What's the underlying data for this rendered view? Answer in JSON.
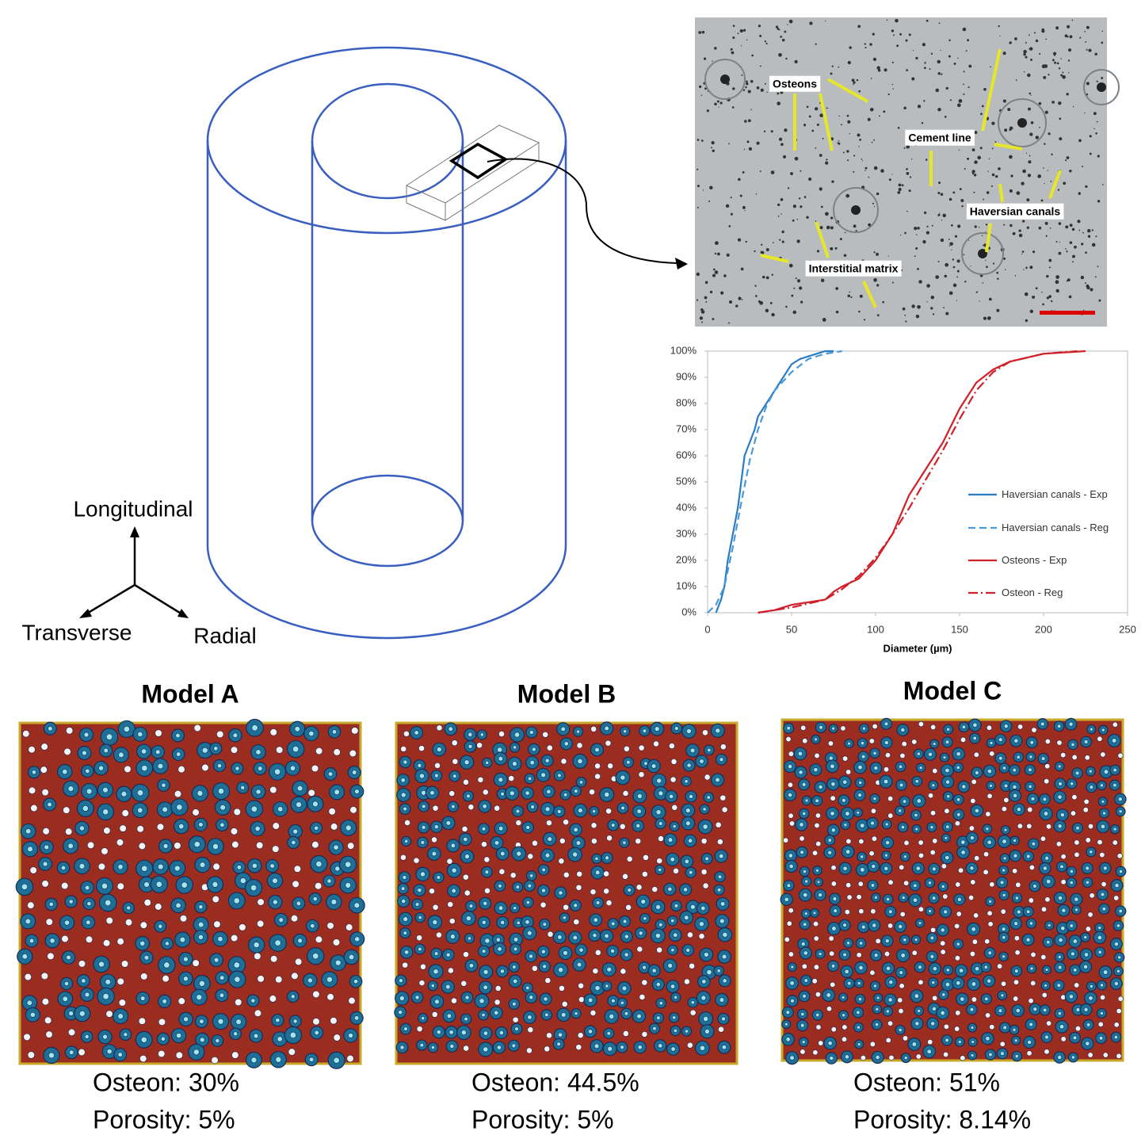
{
  "diagram": {
    "axes": {
      "up": "Longitudinal",
      "left": "Transverse",
      "right": "Radial"
    }
  },
  "micrograph": {
    "labels": [
      "Osteons",
      "Cement line",
      "Haversian canals",
      "Interstitial matrix"
    ]
  },
  "chart_data": {
    "type": "line",
    "x_label": "Diameter (µm)",
    "xlim": [
      0,
      250
    ],
    "xticks": [
      0,
      50,
      100,
      150,
      200,
      250
    ],
    "ylim": [
      0,
      100
    ],
    "yticks": [
      {
        "value": 0,
        "label": "0%"
      },
      {
        "value": 10,
        "label": "10%"
      },
      {
        "value": 20,
        "label": "20%"
      },
      {
        "value": 30,
        "label": "30%"
      },
      {
        "value": 40,
        "label": "40%"
      },
      {
        "value": 50,
        "label": "50%"
      },
      {
        "value": 60,
        "label": "60%"
      },
      {
        "value": 70,
        "label": "70%"
      },
      {
        "value": 80,
        "label": "80%"
      },
      {
        "value": 90,
        "label": "90%"
      },
      {
        "value": 100,
        "label": "100%"
      }
    ],
    "series": [
      {
        "name": "Haversian canals - Exp",
        "color": "#2b7cc4",
        "dash": "solid",
        "x": [
          5,
          8,
          10,
          12,
          15,
          18,
          20,
          22,
          25,
          28,
          30,
          35,
          40,
          45,
          50,
          55,
          60,
          70,
          75
        ],
        "values": [
          0,
          5,
          10,
          20,
          30,
          40,
          50,
          60,
          65,
          70,
          75,
          80,
          85,
          90,
          95,
          97,
          98,
          100,
          100
        ]
      },
      {
        "name": "Haversian canals - Reg",
        "color": "#4a9ad8",
        "dash": "dashed",
        "x": [
          0,
          5,
          10,
          15,
          20,
          25,
          30,
          35,
          40,
          50,
          60,
          70,
          80
        ],
        "values": [
          0,
          3,
          10,
          25,
          42,
          58,
          70,
          79,
          85,
          92,
          97,
          99,
          100
        ]
      },
      {
        "name": "Osteons - Exp",
        "color": "#d0202a",
        "dash": "solid",
        "x": [
          30,
          40,
          50,
          60,
          70,
          75,
          80,
          90,
          100,
          110,
          120,
          130,
          140,
          150,
          160,
          170,
          180,
          200,
          225
        ],
        "values": [
          0,
          1,
          3,
          4,
          5,
          8,
          10,
          13,
          20,
          30,
          45,
          55,
          65,
          78,
          88,
          93,
          96,
          99,
          100
        ]
      },
      {
        "name": "Osteon - Reg",
        "color": "#d0202a",
        "dash": "dashdot",
        "x": [
          30,
          50,
          70,
          80,
          90,
          100,
          110,
          120,
          130,
          140,
          150,
          160,
          170,
          180,
          200,
          220
        ],
        "values": [
          0,
          2,
          5,
          9,
          14,
          21,
          30,
          40,
          51,
          62,
          74,
          85,
          92,
          96,
          99,
          100
        ]
      }
    ]
  },
  "models": [
    {
      "title": "Model A",
      "osteon": "Osteon: 30%",
      "porosity": "Porosity: 5%"
    },
    {
      "title": "Model B",
      "osteon": "Osteon: 44.5%",
      "porosity": "Porosity: 5%"
    },
    {
      "title": "Model C",
      "osteon": "Osteon: 51%",
      "porosity": "Porosity: 8.14%"
    }
  ]
}
